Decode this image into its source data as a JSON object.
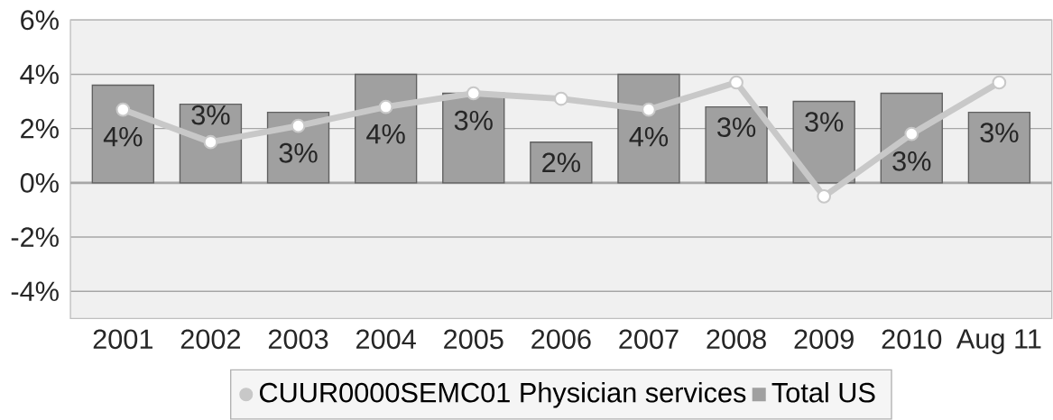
{
  "chart_data": {
    "type": "bar",
    "categories": [
      "2001",
      "2002",
      "2003",
      "2004",
      "2005",
      "2006",
      "2007",
      "2008",
      "2009",
      "2010",
      "Aug 11"
    ],
    "series": [
      {
        "name": "CUUR0000SEMC01   Physician services",
        "type": "line",
        "color": "#c8c8c8",
        "marker": "circle",
        "values": [
          2.7,
          1.5,
          2.1,
          2.8,
          3.3,
          3.1,
          2.7,
          3.7,
          -0.5,
          1.8,
          3.7
        ]
      },
      {
        "name": "Total US",
        "color": "#a0a0a0",
        "values": [
          3.6,
          2.9,
          2.6,
          4.0,
          3.3,
          1.5,
          4.0,
          2.8,
          3.0,
          3.3,
          2.6
        ],
        "value_labels": [
          "4%",
          "3%",
          "3%",
          "4%",
          "3%",
          "2%",
          "4%",
          "3%",
          "3%",
          "3%",
          "3%"
        ]
      }
    ],
    "ylim": [
      -5,
      6
    ],
    "yticks": [
      {
        "value": -4,
        "label": "-4%"
      },
      {
        "value": -2,
        "label": "-2%"
      },
      {
        "value": 0,
        "label": "0%"
      },
      {
        "value": 2,
        "label": "2%"
      },
      {
        "value": 4,
        "label": "4%"
      },
      {
        "value": 6,
        "label": "6%"
      }
    ],
    "grid": "y",
    "legend": "bottom"
  }
}
